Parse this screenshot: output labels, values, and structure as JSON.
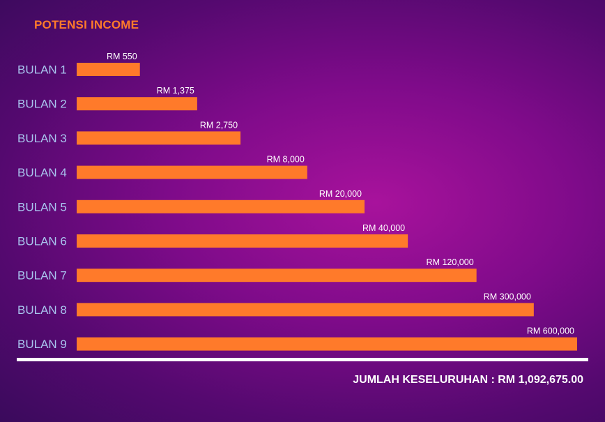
{
  "chart_data": {
    "type": "bar",
    "orientation": "horizontal",
    "title": "POTENSI INCOME",
    "categories": [
      "BULAN 1",
      "BULAN 2",
      "BULAN 3",
      "BULAN 4",
      "BULAN 5",
      "BULAN 6",
      "BULAN 7",
      "BULAN 8",
      "BULAN 9"
    ],
    "values": [
      550,
      1375,
      2750,
      8000,
      20000,
      40000,
      120000,
      300000,
      600000
    ],
    "data_labels": [
      "RM 550",
      "RM 1,375",
      "RM 2,750",
      "RM 8,000",
      "RM 20,000",
      "RM 40,000",
      "RM 120,000",
      "RM 300,000",
      "RM 600,000"
    ],
    "bar_color": "#ff7a2a",
    "category_label_color": "#a9c4ee",
    "grid": false,
    "legend": "none"
  },
  "footer": {
    "total_text": "JUMLAH KESELURUHAN : RM 1,092,675.00"
  }
}
